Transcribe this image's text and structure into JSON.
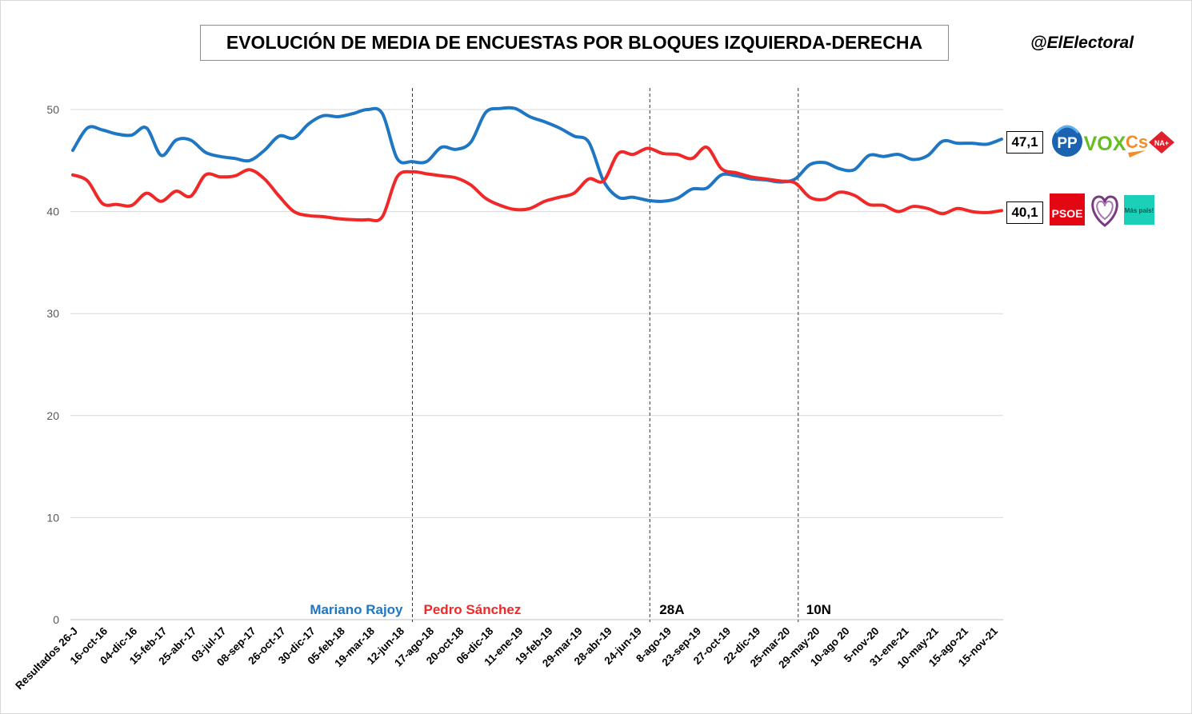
{
  "header": {
    "title": "EVOLUCIÓN DE MEDIA DE ENCUESTAS POR BLOQUES IZQUIERDA-DERECHA",
    "handle": "@ElElectoral"
  },
  "colors": {
    "derecha": "#1f77c4",
    "izquierda": "#f02828",
    "grid": "#d9d9d9"
  },
  "end_labels": {
    "derecha": "47,1",
    "izquierda": "40,1"
  },
  "logos": {
    "derecha": [
      "PP",
      "VOX",
      "Cs",
      "NA+"
    ],
    "izquierda": [
      "PSOE",
      "Más país!"
    ]
  },
  "chart_data": {
    "type": "line",
    "title": "EVOLUCIÓN DE MEDIA DE ENCUESTAS POR BLOQUES IZQUIERDA-DERECHA",
    "ylim": [
      0,
      50
    ],
    "yticks": [
      0,
      10,
      20,
      30,
      40,
      50
    ],
    "grid": true,
    "x_tick_labels": [
      "Resultados 26-J",
      "16-oct-16",
      "04-dic-16",
      "15-feb-17",
      "25-abr-17",
      "03-jul-17",
      "08-sep-17",
      "26-oct-17",
      "30-dic-17",
      "05-feb-18",
      "19-mar-18",
      "12-jun-18",
      "17-ago-18",
      "20-oct-18",
      "06-dic-18",
      "11-ene-19",
      "19-feb-19",
      "29-mar-19",
      "28-abr-19",
      "24-jun-19",
      "8-ago-19",
      "23-sep-19",
      "27-oct-19",
      "22-dic-19",
      "25-mar-20",
      "29-may-20",
      "10-ago 20",
      "5-nov-20",
      "31-ene-21",
      "10-may-21",
      "15-ago-21",
      "15-nov-21"
    ],
    "periods": [
      {
        "label": "Mariano Rajoy",
        "color": "#1f77c4"
      },
      {
        "label": "Pedro Sánchez",
        "color": "#f02828"
      },
      {
        "label": "28A",
        "color": "#000000"
      },
      {
        "label": "10N",
        "color": "#000000"
      }
    ],
    "dividers_after_tick": [
      11,
      19,
      24
    ],
    "series": [
      {
        "key": "derecha",
        "color": "#1f77c4",
        "values": [
          46.0,
          48.2,
          48.0,
          47.6,
          47.5,
          48.2,
          45.5,
          47.0,
          47.0,
          45.8,
          45.4,
          45.2,
          45.0,
          46.0,
          47.4,
          47.2,
          48.6,
          49.4,
          49.3,
          49.6,
          50.0,
          49.6,
          45.2,
          44.9,
          44.9,
          46.3,
          46.1,
          46.8,
          49.7,
          50.1,
          50.1,
          49.3,
          48.8,
          48.2,
          47.4,
          46.8,
          43.0,
          41.4,
          41.4,
          41.1,
          41.0,
          41.3,
          42.2,
          42.3,
          43.6,
          43.5,
          43.2,
          43.1,
          42.9,
          43.2,
          44.6,
          44.8,
          44.2,
          44.1,
          45.5,
          45.4,
          45.6,
          45.1,
          45.5,
          46.9,
          46.7,
          46.7,
          46.6,
          47.1
        ],
        "end_label": "47,1"
      },
      {
        "key": "izquierda",
        "color": "#f02828",
        "values": [
          43.6,
          43.0,
          40.8,
          40.7,
          40.6,
          41.8,
          41.0,
          42.0,
          41.5,
          43.6,
          43.4,
          43.5,
          44.1,
          43.2,
          41.5,
          40.0,
          39.6,
          39.5,
          39.3,
          39.2,
          39.2,
          39.5,
          43.4,
          43.9,
          43.7,
          43.5,
          43.3,
          42.6,
          41.3,
          40.6,
          40.2,
          40.3,
          41.0,
          41.4,
          41.8,
          43.2,
          43.0,
          45.7,
          45.6,
          46.2,
          45.7,
          45.6,
          45.2,
          46.3,
          44.2,
          43.8,
          43.4,
          43.2,
          43.0,
          42.8,
          41.4,
          41.2,
          41.9,
          41.6,
          40.7,
          40.6,
          40.0,
          40.5,
          40.3,
          39.8,
          40.3,
          40.0,
          39.9,
          40.1
        ],
        "end_label": "40,1"
      }
    ]
  }
}
